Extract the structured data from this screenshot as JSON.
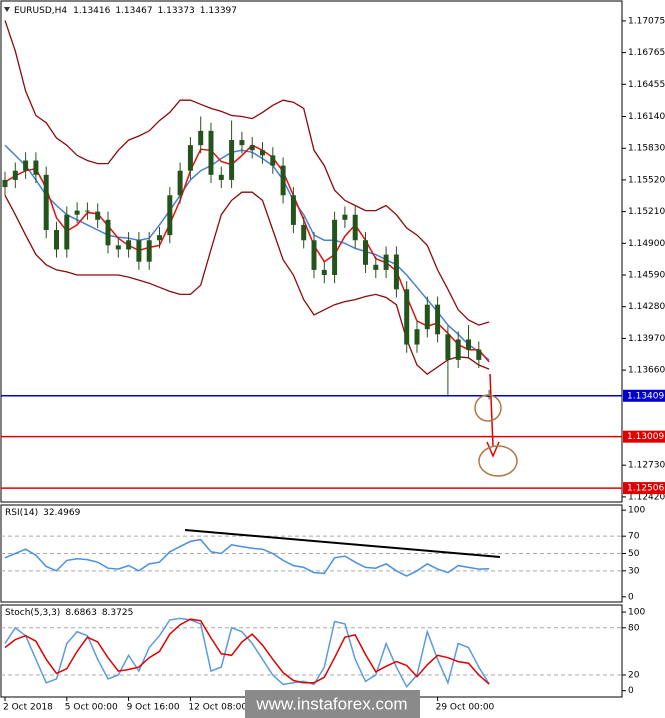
{
  "chart_data": [
    {
      "type": "candlestick",
      "symbol": "EURUSD,H4",
      "candle_color": "#24541c",
      "watermark": "www.instaforex.com",
      "categories": [
        "2 Oct 2018",
        null,
        null,
        null,
        null,
        null,
        "5 Oct 00:00",
        null,
        null,
        null,
        null,
        null,
        "9 Oct 16:00",
        null,
        null,
        null,
        null,
        null,
        "12 Oct 08:00",
        null,
        null,
        null,
        null,
        null,
        null,
        null,
        null,
        null,
        null,
        null,
        null,
        null,
        null,
        null,
        null,
        null,
        null,
        null,
        null,
        null,
        null,
        null,
        "29 Oct 00:00",
        null,
        null,
        null,
        null,
        null
      ],
      "open": [
        1.1545,
        1.1552,
        1.1561,
        1.1571,
        1.1557,
        1.1503,
        1.1484,
        1.1518,
        1.1522,
        1.1521,
        1.1513,
        1.1488,
        1.1484,
        1.1493,
        1.1472,
        1.1493,
        1.1498,
        1.1537,
        1.1561,
        1.1586,
        1.16,
        1.1557,
        1.1552,
        1.1591,
        1.1586,
        1.1581,
        1.1576,
        1.1566,
        1.1537,
        1.1508,
        1.1493,
        1.1464,
        1.1459,
        1.1513,
        1.1518,
        1.1493,
        1.1469,
        1.1464,
        1.1479,
        1.1445,
        1.1391,
        1.1406,
        1.143,
        1.1401,
        1.1376,
        1.1396,
        1.1386,
        1.13416
      ],
      "high": [
        1.156,
        1.1569,
        1.1579,
        1.1579,
        1.1565,
        1.1511,
        1.1526,
        1.153,
        1.153,
        1.1529,
        1.1521,
        1.1496,
        1.1501,
        1.1501,
        1.1501,
        1.1506,
        1.1545,
        1.1569,
        1.1594,
        1.1614,
        1.1608,
        1.1565,
        1.161,
        1.1599,
        1.1594,
        1.1589,
        1.1584,
        1.1574,
        1.1545,
        1.1516,
        1.1501,
        1.1472,
        1.1521,
        1.1526,
        1.1526,
        1.1501,
        1.1477,
        1.1487,
        1.1487,
        1.1453,
        1.1414,
        1.1438,
        1.1438,
        1.1409,
        1.1404,
        1.141,
        1.1394,
        1.13467
      ],
      "low": [
        1.1537,
        1.1544,
        1.1553,
        1.1549,
        1.1495,
        1.1476,
        1.1476,
        1.151,
        1.1513,
        1.1505,
        1.148,
        1.1476,
        1.1476,
        1.1464,
        1.1464,
        1.1485,
        1.149,
        1.1529,
        1.1553,
        1.1578,
        1.1549,
        1.1544,
        1.1544,
        1.1578,
        1.1573,
        1.1568,
        1.1558,
        1.1529,
        1.15,
        1.1485,
        1.1456,
        1.1451,
        1.1451,
        1.1505,
        1.1485,
        1.1461,
        1.1456,
        1.1456,
        1.1437,
        1.1383,
        1.1383,
        1.1398,
        1.1393,
        1.134,
        1.1368,
        1.1378,
        1.1368,
        1.13373
      ],
      "close": [
        1.1552,
        1.1561,
        1.1571,
        1.1557,
        1.1503,
        1.1484,
        1.1518,
        1.1522,
        1.1521,
        1.1513,
        1.1488,
        1.1484,
        1.1493,
        1.1472,
        1.1493,
        1.1498,
        1.1537,
        1.1561,
        1.1586,
        1.16,
        1.1557,
        1.1552,
        1.1591,
        1.1586,
        1.1581,
        1.1576,
        1.1566,
        1.1537,
        1.1508,
        1.1493,
        1.1464,
        1.1459,
        1.1513,
        1.1518,
        1.1493,
        1.1469,
        1.1464,
        1.1479,
        1.1445,
        1.1391,
        1.1406,
        1.143,
        1.1401,
        1.1376,
        1.1396,
        1.1386,
        1.1376,
        1.13397
      ],
      "overlays": [
        {
          "color": "#8b0a0a",
          "values": [
            1.1708,
            1.1678,
            1.1639,
            1.1615,
            1.1608,
            1.1593,
            1.1586,
            1.1576,
            1.1571,
            1.1568,
            1.1568,
            1.1581,
            1.1591,
            1.1595,
            1.16,
            1.161,
            1.1618,
            1.163,
            1.163,
            1.1626,
            1.1622,
            1.1619,
            1.1615,
            1.1614,
            1.1612,
            1.1618,
            1.1625,
            1.163,
            1.1628,
            1.1622,
            1.1581,
            1.1566,
            1.1542,
            1.1532,
            1.1527,
            1.1522,
            1.1522,
            1.1527,
            1.1518,
            1.1505,
            1.1498,
            1.1488,
            1.1464,
            1.1445,
            1.1425,
            1.1415,
            1.141,
            1.1413
          ]
        },
        {
          "color": "#8b0a0a",
          "values": [
            1.1537,
            1.1518,
            1.1498,
            1.1479,
            1.1469,
            1.1464,
            1.1462,
            1.1459,
            1.1459,
            1.1459,
            1.1459,
            1.1459,
            1.1457,
            1.1454,
            1.1451,
            1.1447,
            1.1443,
            1.144,
            1.144,
            1.1449,
            1.1484,
            1.1518,
            1.1532,
            1.154,
            1.154,
            1.1532,
            1.1503,
            1.1474,
            1.1459,
            1.1435,
            1.142,
            1.1425,
            1.143,
            1.1433,
            1.1435,
            1.1438,
            1.144,
            1.1437,
            1.143,
            1.1396,
            1.1371,
            1.1362,
            1.1369,
            1.1376,
            1.1379,
            1.1378,
            1.1371,
            1.1367
          ]
        },
        {
          "color": "#4a7fd4",
          "values": [
            1.1586,
            1.1576,
            1.1566,
            1.1552,
            1.1537,
            1.1527,
            1.1518,
            1.1513,
            1.1508,
            1.1503,
            1.1498,
            1.1496,
            1.1495,
            1.1493,
            1.1495,
            1.1508,
            1.1522,
            1.1537,
            1.1552,
            1.1561,
            1.1566,
            1.1573,
            1.1579,
            1.1581,
            1.1579,
            1.1573,
            1.1566,
            1.1552,
            1.1532,
            1.1518,
            1.1498,
            1.1493,
            1.1493,
            1.149,
            1.1485,
            1.1482,
            1.1479,
            1.1474,
            1.1469,
            1.1459,
            1.1447,
            1.1435,
            1.1423,
            1.141,
            1.1401,
            1.1391,
            1.1384,
            1.1376
          ]
        },
        {
          "color": "#e01010",
          "values": [
            1.155,
            1.1556,
            1.1561,
            1.1563,
            1.1544,
            1.1515,
            1.1502,
            1.1508,
            1.152,
            1.1519,
            1.1507,
            1.1495,
            1.1488,
            1.1483,
            1.1486,
            1.1488,
            1.1509,
            1.1532,
            1.1561,
            1.1582,
            1.1581,
            1.157,
            1.1567,
            1.1576,
            1.1586,
            1.1581,
            1.1574,
            1.156,
            1.1537,
            1.1513,
            1.1488,
            1.1472,
            1.1479,
            1.1497,
            1.1508,
            1.1493,
            1.1475,
            1.1471,
            1.1463,
            1.1438,
            1.1414,
            1.1409,
            1.1412,
            1.1402,
            1.1391,
            1.1386,
            1.1386,
            1.1374
          ]
        }
      ],
      "levels": [
        {
          "value": 1.13409,
          "color": "#0000cc"
        },
        {
          "value": 1.13009,
          "color": "#e00000"
        },
        {
          "value": 1.12506,
          "color": "#e00000"
        }
      ],
      "ylim": [
        1.1237,
        1.1727
      ],
      "yticks": [
        1.17075,
        1.16765,
        1.16455,
        {
          "value": 1.1614,
          "label": "1.16140"
        },
        {
          "value": 1.1583,
          "label": "1.15830"
        },
        {
          "value": 1.1552,
          "label": "1.15520"
        },
        {
          "value": 1.1521,
          "label": "1.15210"
        },
        {
          "value": 1.149,
          "label": "1.14900"
        },
        {
          "value": 1.1459,
          "label": "1.14590"
        },
        {
          "value": 1.1428,
          "label": "1.14280"
        },
        {
          "value": 1.1397,
          "label": "1.13970"
        },
        {
          "value": 1.1366,
          "label": "1.13660"
        },
        {
          "value": 1.1273,
          "label": "1.12730"
        },
        {
          "value": 1.1242,
          "label": "1.12420"
        }
      ]
    },
    {
      "type": "line",
      "title": "RSI(14)",
      "series": [
        {
          "color": "#4a90e2",
          "values": [
            45,
            50,
            55,
            48,
            35,
            30,
            42,
            44,
            43,
            40,
            33,
            32,
            36,
            30,
            38,
            40,
            52,
            58,
            64,
            66,
            52,
            50,
            60,
            58,
            56,
            55,
            50,
            42,
            36,
            34,
            28,
            27,
            45,
            47,
            40,
            34,
            33,
            38,
            30,
            24,
            30,
            38,
            32,
            28,
            36,
            34,
            32,
            32.4969
          ]
        }
      ],
      "ylim": [
        -6,
        106
      ],
      "yticks": [
        100,
        70,
        50,
        30,
        0
      ]
    },
    {
      "type": "line",
      "title": "Stoch(5,3,3)",
      "series": [
        {
          "color": "#5b9be0",
          "values": [
            60,
            80,
            70,
            40,
            10,
            15,
            60,
            75,
            70,
            40,
            15,
            20,
            45,
            25,
            55,
            70,
            90,
            92,
            90,
            85,
            25,
            30,
            80,
            75,
            60,
            40,
            20,
            8,
            10,
            12,
            8,
            30,
            88,
            85,
            40,
            12,
            20,
            60,
            30,
            5,
            20,
            75,
            40,
            10,
            60,
            55,
            30,
            8.6863
          ]
        },
        {
          "color": "#e00000",
          "values": [
            55,
            65,
            70,
            63,
            40,
            22,
            28,
            50,
            68,
            62,
            42,
            25,
            27,
            30,
            42,
            50,
            72,
            84,
            91,
            89,
            67,
            47,
            45,
            62,
            72,
            58,
            40,
            23,
            13,
            10,
            10,
            17,
            42,
            68,
            71,
            46,
            24,
            31,
            37,
            32,
            18,
            33,
            45,
            42,
            37,
            35,
            20,
            8.3725
          ]
        }
      ],
      "ylim": [
        -8,
        109
      ],
      "yticks": [
        100,
        80,
        20,
        0
      ]
    }
  ]
}
